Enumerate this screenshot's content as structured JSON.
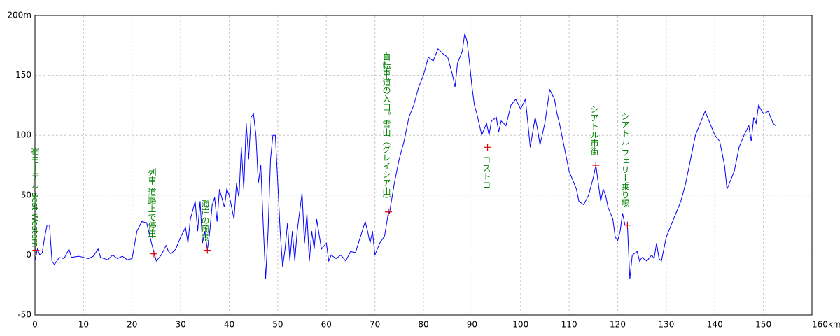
{
  "chart_data": {
    "type": "line",
    "color": "#0000ff",
    "marker_color": "#e00000",
    "annotation_color": "#008000",
    "grid": true,
    "xlim": [
      0,
      160
    ],
    "xticks": [
      0,
      10,
      20,
      30,
      40,
      50,
      60,
      70,
      80,
      90,
      100,
      110,
      120,
      130,
      140,
      150,
      {
        "value": 160,
        "label": "160km"
      }
    ],
    "ylim": [
      -50,
      200
    ],
    "yticks": [
      -50,
      0,
      50,
      100,
      150,
      {
        "value": 200,
        "label": "200m"
      }
    ],
    "x": [
      0,
      0.5,
      1,
      1.5,
      2,
      2.5,
      3,
      3.5,
      4,
      5,
      6,
      7,
      7.5,
      9,
      11,
      12,
      13,
      13.5,
      15,
      16,
      17,
      18,
      19,
      20,
      21,
      22,
      23,
      24,
      24.5,
      25,
      26,
      27,
      27.5,
      28,
      29,
      30,
      31,
      31.5,
      32,
      33,
      33.5,
      34,
      34.5,
      35,
      35.5,
      36,
      36.5,
      37,
      37.5,
      38,
      39,
      39.5,
      40,
      41,
      41.5,
      42,
      42.5,
      43,
      43.5,
      44,
      44.5,
      45,
      45.5,
      46,
      46.5,
      47,
      47.5,
      48,
      48.5,
      49,
      49.5,
      50,
      50.5,
      51,
      51.5,
      52,
      52.5,
      53,
      53.5,
      54,
      55,
      55.5,
      56,
      56.5,
      57,
      57.5,
      58,
      59,
      60,
      60.5,
      61,
      62,
      63,
      64,
      65,
      66,
      67,
      68,
      68.5,
      69,
      69.5,
      70,
      71,
      72,
      72.8,
      73,
      74,
      75,
      76,
      77,
      78,
      79,
      80,
      81,
      82,
      83,
      84,
      85,
      86,
      86.5,
      87,
      88,
      88.5,
      89,
      89.5,
      90,
      90.5,
      91,
      92,
      92.5,
      93,
      93.5,
      94,
      95,
      95.5,
      96,
      97,
      98,
      99,
      100,
      101,
      101.5,
      102,
      103,
      103.5,
      104,
      105,
      106,
      107,
      107.5,
      108,
      109,
      110,
      111,
      111.5,
      112,
      113,
      114,
      115,
      115.5,
      116,
      116.5,
      117,
      117.5,
      118,
      119,
      119.5,
      120,
      120.5,
      121,
      121.5,
      122,
      122.5,
      123,
      124,
      124.5,
      125,
      126,
      127,
      127.5,
      128,
      128.5,
      129,
      130,
      131,
      132,
      133,
      134,
      135,
      136,
      137,
      138,
      139,
      140,
      141,
      142,
      142.5,
      143,
      144,
      145,
      146,
      147,
      147.5,
      148,
      148.5,
      149,
      150,
      151,
      152,
      152.5
    ],
    "values": [
      -5,
      5,
      0,
      2,
      15,
      25,
      25,
      -5,
      -8,
      -2,
      -3,
      5,
      -2,
      -1,
      -3,
      -1,
      5,
      -2,
      -4,
      0,
      -3,
      -1,
      -4,
      -3,
      20,
      28,
      27,
      10,
      2,
      -5,
      0,
      8,
      3,
      1,
      5,
      15,
      23,
      10,
      30,
      45,
      20,
      45,
      10,
      20,
      4,
      20,
      42,
      48,
      28,
      55,
      40,
      55,
      50,
      30,
      60,
      48,
      90,
      55,
      110,
      80,
      115,
      118,
      100,
      60,
      75,
      25,
      -20,
      20,
      80,
      100,
      100,
      60,
      20,
      -10,
      5,
      27,
      -5,
      20,
      -5,
      20,
      52,
      10,
      35,
      -5,
      20,
      5,
      30,
      5,
      10,
      -5,
      0,
      -3,
      0,
      -5,
      3,
      2,
      15,
      28,
      20,
      10,
      20,
      0,
      10,
      16,
      36,
      35,
      60,
      80,
      95,
      115,
      125,
      140,
      150,
      165,
      162,
      172,
      168,
      165,
      150,
      140,
      160,
      170,
      185,
      178,
      160,
      140,
      125,
      118,
      100,
      105,
      110,
      100,
      112,
      115,
      103,
      112,
      108,
      125,
      130,
      122,
      130,
      110,
      90,
      115,
      105,
      92,
      110,
      138,
      130,
      118,
      110,
      90,
      70,
      60,
      55,
      45,
      42,
      50,
      65,
      75,
      60,
      45,
      55,
      50,
      40,
      30,
      15,
      12,
      20,
      35,
      25,
      25,
      -20,
      0,
      3,
      -5,
      -2,
      -5,
      0,
      -3,
      10,
      -3,
      -5,
      15,
      25,
      35,
      45,
      60,
      80,
      100,
      110,
      120,
      110,
      100,
      95,
      75,
      55,
      60,
      70,
      90,
      100,
      108,
      95,
      115,
      110,
      125,
      118,
      120,
      110,
      108
    ],
    "annotations": [
      {
        "text": "宿モーテル Best Western",
        "x": 0.2,
        "y": 4
      },
      {
        "text": "列車 道路上で停車",
        "x": 24.5,
        "y": 1
      },
      {
        "text": "海岸の風景",
        "x": 35.5,
        "y": 4
      },
      {
        "text": "自転車道の入口。雪山（グレイシア山）",
        "x": 72.8,
        "y": 36
      },
      {
        "text": "コストコ",
        "x": 93.2,
        "y": 90
      },
      {
        "text": "シアトル市街",
        "x": 115.5,
        "y": 75
      },
      {
        "text": "シアトル フェリー乗り場",
        "x": 122,
        "y": 25
      }
    ]
  }
}
